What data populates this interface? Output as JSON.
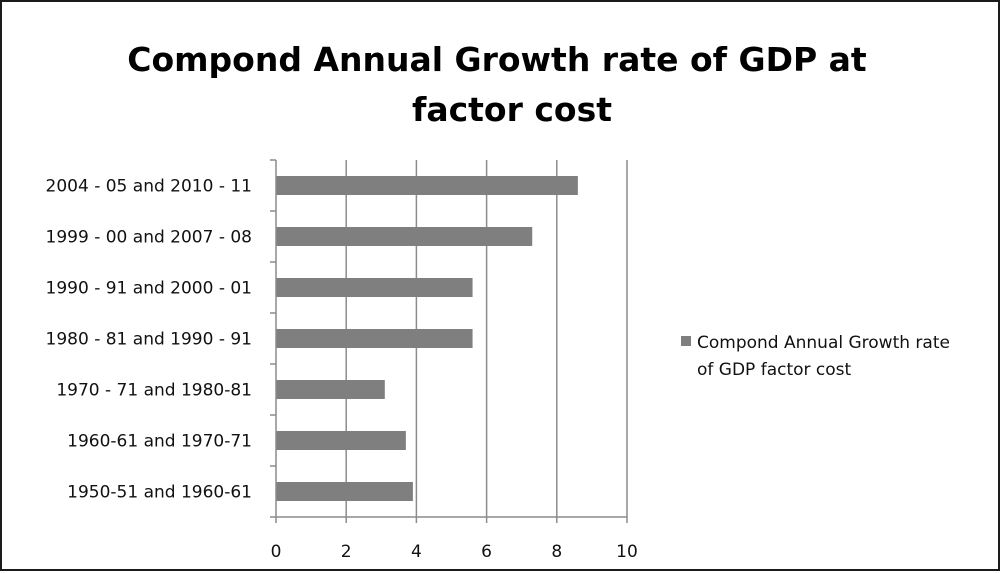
{
  "chart_data": {
    "type": "bar",
    "orientation": "horizontal",
    "title": "Compond Annual Growth rate of GDP  at factor cost",
    "title_lines": [
      "Compond Annual Growth rate of GDP  at",
      "factor cost"
    ],
    "categories": [
      "2004 - 05 and 2010 - 11",
      "1999 - 00 and 2007 - 08",
      "1990 - 91 and 2000 - 01",
      "1980 - 81 and 1990 - 91",
      "1970 - 71 and 1980-81",
      "1960-61 and 1970-71",
      "1950-51 and 1960-61"
    ],
    "series": [
      {
        "name": "Compond Annual Growth rate of GDP factor cost",
        "values": [
          8.6,
          7.3,
          5.6,
          5.6,
          3.1,
          3.7,
          3.9
        ],
        "color": "#7f7f7f"
      }
    ],
    "legend_lines": [
      "Compond Annual Growth rate",
      "of GDP factor cost"
    ],
    "xlim": [
      0,
      10
    ],
    "x_ticks": [
      0,
      2,
      4,
      6,
      8,
      10
    ],
    "grid": true,
    "legend_position": "right"
  }
}
